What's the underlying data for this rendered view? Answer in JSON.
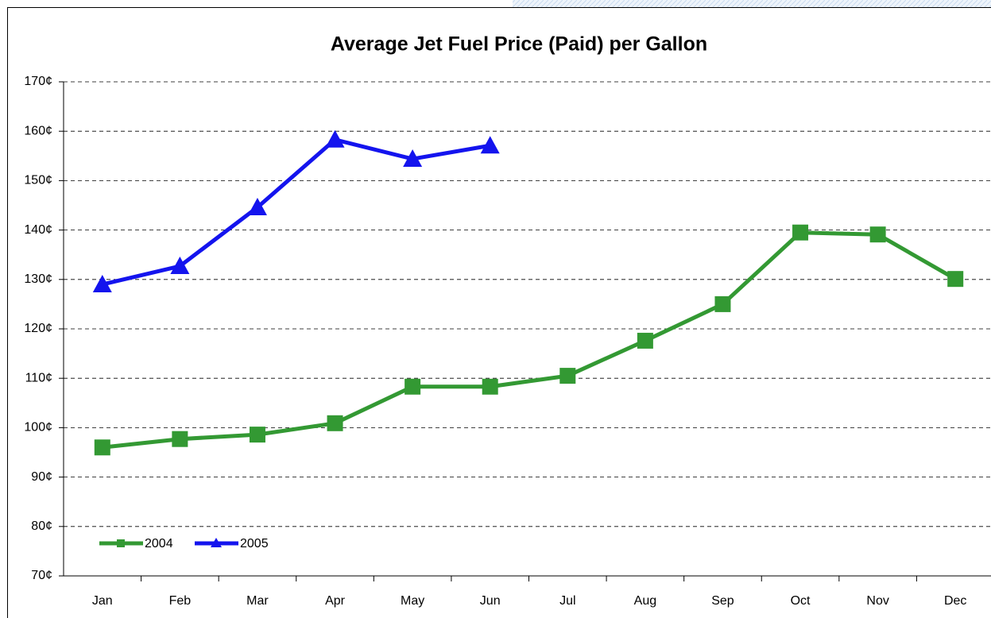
{
  "chart_data": {
    "type": "line",
    "title": "Average Jet Fuel Price (Paid) per Gallon",
    "categories": [
      "Jan",
      "Feb",
      "Mar",
      "Apr",
      "May",
      "Jun",
      "Jul",
      "Aug",
      "Sep",
      "Oct",
      "Nov",
      "Dec"
    ],
    "series": [
      {
        "name": "2004",
        "color": "#339933",
        "marker": "square",
        "values": [
          96.0,
          97.7,
          98.6,
          100.9,
          108.3,
          108.3,
          110.5,
          117.6,
          125.0,
          139.5,
          139.1,
          130.1
        ]
      },
      {
        "name": "2005",
        "color": "#1414ee",
        "marker": "triangle",
        "values": [
          129.0,
          132.7,
          144.6,
          158.3,
          154.4,
          157.1,
          null,
          null,
          null,
          null,
          null,
          null
        ]
      }
    ],
    "ylim": [
      70,
      170
    ],
    "yticks": [
      {
        "value": 70,
        "label": "70¢"
      },
      {
        "value": 80,
        "label": "80¢"
      },
      {
        "value": 90,
        "label": "90¢"
      },
      {
        "value": 100,
        "label": "100¢"
      },
      {
        "value": 110,
        "label": "110¢"
      },
      {
        "value": 120,
        "label": "120¢"
      },
      {
        "value": 130,
        "label": "130¢"
      },
      {
        "value": 140,
        "label": "140¢"
      },
      {
        "value": 150,
        "label": "150¢"
      },
      {
        "value": 160,
        "label": "160¢"
      },
      {
        "value": 170,
        "label": "170¢"
      }
    ],
    "grid": true,
    "legend": "lower left"
  }
}
